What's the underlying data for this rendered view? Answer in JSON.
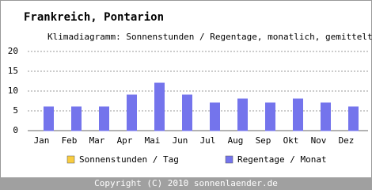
{
  "chart_data": {
    "type": "bar",
    "title": "Frankreich, Pontarion",
    "subtitle": "Klimadiagramm: Sonnenstunden / Regentage, monatlich, gemittelt",
    "categories": [
      "Jan",
      "Feb",
      "Mar",
      "Apr",
      "Mai",
      "Jun",
      "Jul",
      "Aug",
      "Sep",
      "Okt",
      "Nov",
      "Dez"
    ],
    "series": [
      {
        "name": "Sonnenstunden / Tag",
        "color": "#f8cc40",
        "values": [
          0,
          0,
          0,
          0,
          0,
          0,
          0,
          0,
          0,
          0,
          0,
          0
        ]
      },
      {
        "name": "Regentage / Monat",
        "color": "#7474ec",
        "values": [
          6,
          6,
          6,
          9,
          12,
          9,
          7,
          8,
          7,
          8,
          7,
          6
        ]
      }
    ],
    "ylim": [
      0,
      20
    ],
    "yticks": [
      0,
      5,
      10,
      15,
      20
    ],
    "grid": true,
    "footer": "Copyright (C) 2010 sonnenlaender.de"
  }
}
